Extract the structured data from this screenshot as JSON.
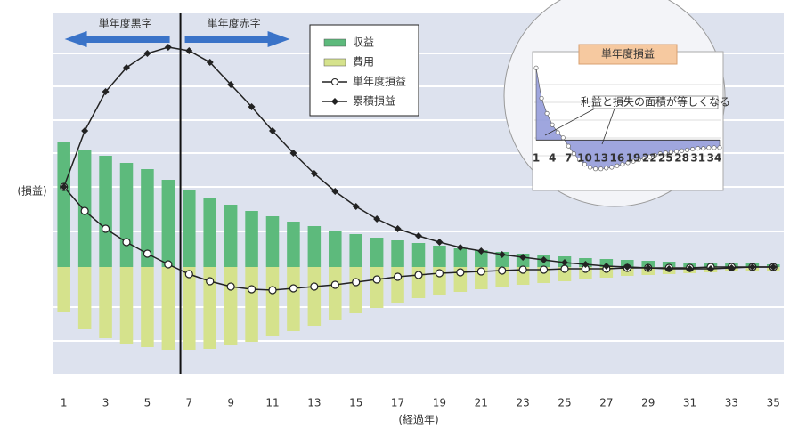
{
  "chart_data": [
    {
      "type": "combo",
      "y_label": "(損益)",
      "x_label": "(経過年)",
      "annotations": [
        "単年度黒字",
        "単年度赤字"
      ],
      "categories": [
        1,
        null,
        3,
        null,
        5,
        null,
        7,
        null,
        9,
        null,
        11,
        null,
        13,
        null,
        15,
        null,
        17,
        null,
        19,
        null,
        21,
        null,
        23,
        null,
        25,
        null,
        27,
        null,
        29,
        null,
        31,
        null,
        33,
        null,
        35
      ],
      "ylim": [
        -120,
        285
      ],
      "series": [
        {
          "name": "収益",
          "type": "bar",
          "color": "#5dba7c",
          "values": [
            140,
            132,
            125,
            117,
            110,
            98,
            87,
            78,
            70,
            63,
            57,
            51,
            46,
            41,
            37,
            33,
            30,
            27,
            24,
            21,
            19,
            17,
            15,
            13,
            12,
            10,
            9,
            8,
            7,
            6,
            5,
            5,
            4,
            4,
            3
          ]
        },
        {
          "name": "費用",
          "type": "bar",
          "color": "#d5e28c",
          "values": [
            -50,
            -70,
            -80,
            -87,
            -90,
            -93,
            -93,
            -92,
            -88,
            -84,
            -78,
            -72,
            -66,
            -60,
            -52,
            -46,
            -40,
            -35,
            -31,
            -28,
            -25,
            -22,
            -20,
            -18,
            -16,
            -14,
            -12,
            -10,
            -9,
            -8,
            -7,
            -6,
            -5,
            -4,
            -4
          ]
        },
        {
          "name": "単年度損益",
          "type": "line",
          "marker": "circle",
          "color": "#222222",
          "values": [
            90,
            63,
            43,
            28,
            15,
            3,
            -8,
            -16,
            -22,
            -25,
            -26,
            -24,
            -22,
            -20,
            -17,
            -14,
            -11,
            -9,
            -7,
            -6,
            -5,
            -4,
            -3,
            -3,
            -2,
            -2,
            -2,
            -1,
            -1,
            -1,
            -1,
            0,
            0,
            0,
            0
          ]
        },
        {
          "name": "累積損益",
          "type": "line",
          "marker": "diamond",
          "color": "#222222",
          "values": [
            90,
            153,
            197,
            224,
            240,
            247,
            243,
            230,
            205,
            180,
            153,
            128,
            105,
            85,
            68,
            54,
            43,
            35,
            28,
            22,
            18,
            14,
            11,
            8,
            5,
            3,
            1,
            0,
            -1,
            -2,
            -2,
            -2,
            -1,
            0,
            0
          ]
        }
      ]
    },
    {
      "type": "area",
      "title": "単年度損益",
      "annotation": "利益と損失の面積が等しくなる",
      "color": "#8e97d8",
      "categories": [
        1,
        null,
        null,
        4,
        null,
        null,
        7,
        null,
        null,
        10,
        null,
        null,
        13,
        null,
        null,
        16,
        null,
        null,
        19,
        null,
        null,
        22,
        null,
        null,
        25,
        null,
        null,
        28,
        null,
        null,
        31,
        null,
        null,
        34,
        null
      ],
      "ylim": [
        -50,
        100
      ],
      "values": [
        95,
        55,
        35,
        20,
        10,
        3,
        -8,
        -18,
        -26,
        -32,
        -36,
        -38,
        -38,
        -37,
        -36,
        -34,
        -32,
        -30,
        -28,
        -26,
        -24,
        -22,
        -20,
        -18,
        -17,
        -16,
        -15,
        -14,
        -13,
        -12,
        -11,
        -11,
        -10,
        -10,
        -10
      ]
    }
  ]
}
